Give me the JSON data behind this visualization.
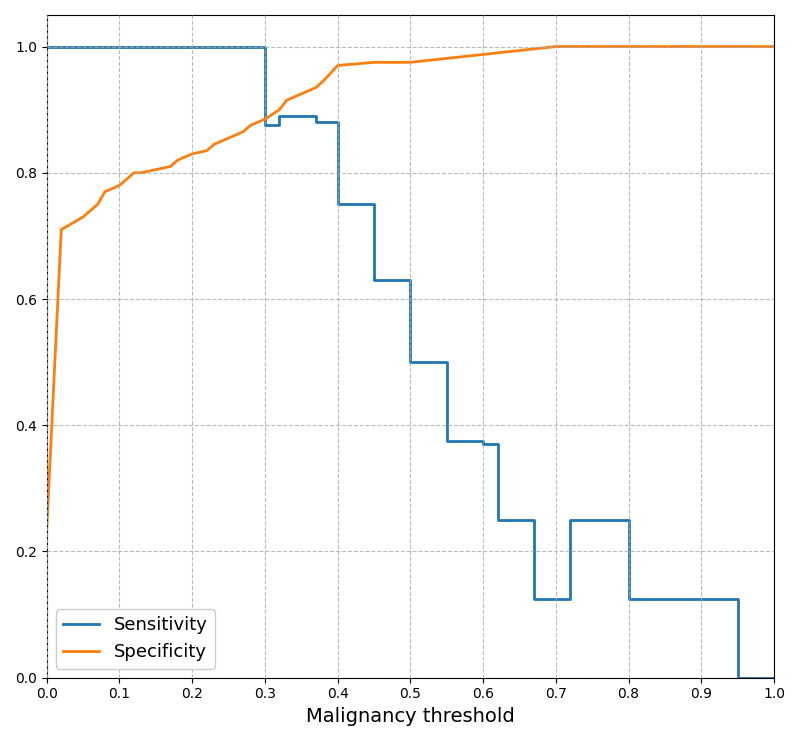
{
  "sensitivity_x": [
    0.0,
    0.3,
    0.3,
    0.32,
    0.32,
    0.37,
    0.37,
    0.4,
    0.4,
    0.45,
    0.45,
    0.48,
    0.48,
    0.5,
    0.5,
    0.52,
    0.52,
    0.55,
    0.55,
    0.58,
    0.58,
    0.6,
    0.6,
    0.62,
    0.62,
    0.65,
    0.65,
    0.67,
    0.67,
    0.7,
    0.7,
    0.72,
    0.72,
    0.8,
    0.8,
    0.82,
    0.82,
    0.95,
    0.95,
    1.0
  ],
  "sensitivity_y": [
    1.0,
    1.0,
    0.875,
    0.875,
    0.89,
    0.89,
    0.88,
    0.88,
    0.75,
    0.75,
    0.63,
    0.63,
    0.63,
    0.63,
    0.5,
    0.5,
    0.5,
    0.5,
    0.375,
    0.375,
    0.375,
    0.375,
    0.37,
    0.37,
    0.25,
    0.25,
    0.25,
    0.25,
    0.125,
    0.125,
    0.125,
    0.125,
    0.25,
    0.25,
    0.125,
    0.125,
    0.125,
    0.125,
    0.0,
    0.0
  ],
  "specificity_x": [
    0.0,
    0.02,
    0.05,
    0.07,
    0.08,
    0.09,
    0.1,
    0.12,
    0.13,
    0.15,
    0.17,
    0.18,
    0.2,
    0.22,
    0.23,
    0.25,
    0.27,
    0.28,
    0.3,
    0.32,
    0.33,
    0.35,
    0.37,
    0.38,
    0.4,
    0.45,
    0.5,
    0.7,
    1.0
  ],
  "specificity_y": [
    0.235,
    0.71,
    0.73,
    0.75,
    0.77,
    0.775,
    0.78,
    0.8,
    0.8,
    0.805,
    0.81,
    0.82,
    0.83,
    0.835,
    0.845,
    0.855,
    0.865,
    0.875,
    0.885,
    0.9,
    0.915,
    0.925,
    0.935,
    0.945,
    0.97,
    0.975,
    0.975,
    1.0,
    1.0
  ],
  "sensitivity_color": "#1f77b4",
  "specificity_color": "#ff7f0e",
  "xlabel": "Malignancy threshold",
  "ylabel": "",
  "xlim": [
    0.0,
    1.0
  ],
  "ylim": [
    0.0,
    1.05
  ],
  "grid_color": "#aaaaaa",
  "background_color": "#ffffff",
  "legend_labels": [
    "Sensitivity",
    "Specificity"
  ],
  "figsize": [
    8.0,
    7.41
  ],
  "dpi": 100
}
